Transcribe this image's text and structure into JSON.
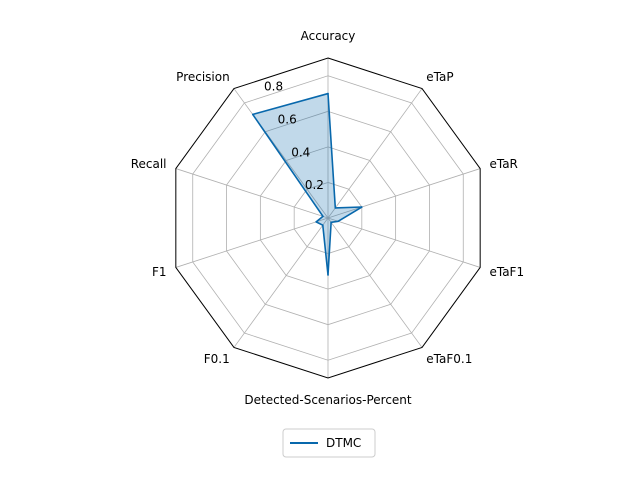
{
  "chart_data": {
    "type": "radar",
    "axes": [
      "Accuracy",
      "eTaP",
      "eTaR",
      "eTaF1",
      "eTaF0.1",
      "Detected-Scenarios-Percent",
      "F0.1",
      "F1",
      "Recall",
      "Precision"
    ],
    "rlim": [
      0,
      0.9
    ],
    "rticks": [
      0.2,
      0.4,
      0.6,
      0.8
    ],
    "rtick_labels": [
      "0.2",
      "0.4",
      "0.6",
      "0.8"
    ],
    "grid": true,
    "legend_position": "bottom-center",
    "series": [
      {
        "name": "DTMC",
        "color": "#0868ac",
        "values": [
          0.7,
          0.07,
          0.2,
          0.06,
          0.03,
          0.32,
          0.05,
          0.07,
          0.03,
          0.72
        ]
      }
    ]
  }
}
